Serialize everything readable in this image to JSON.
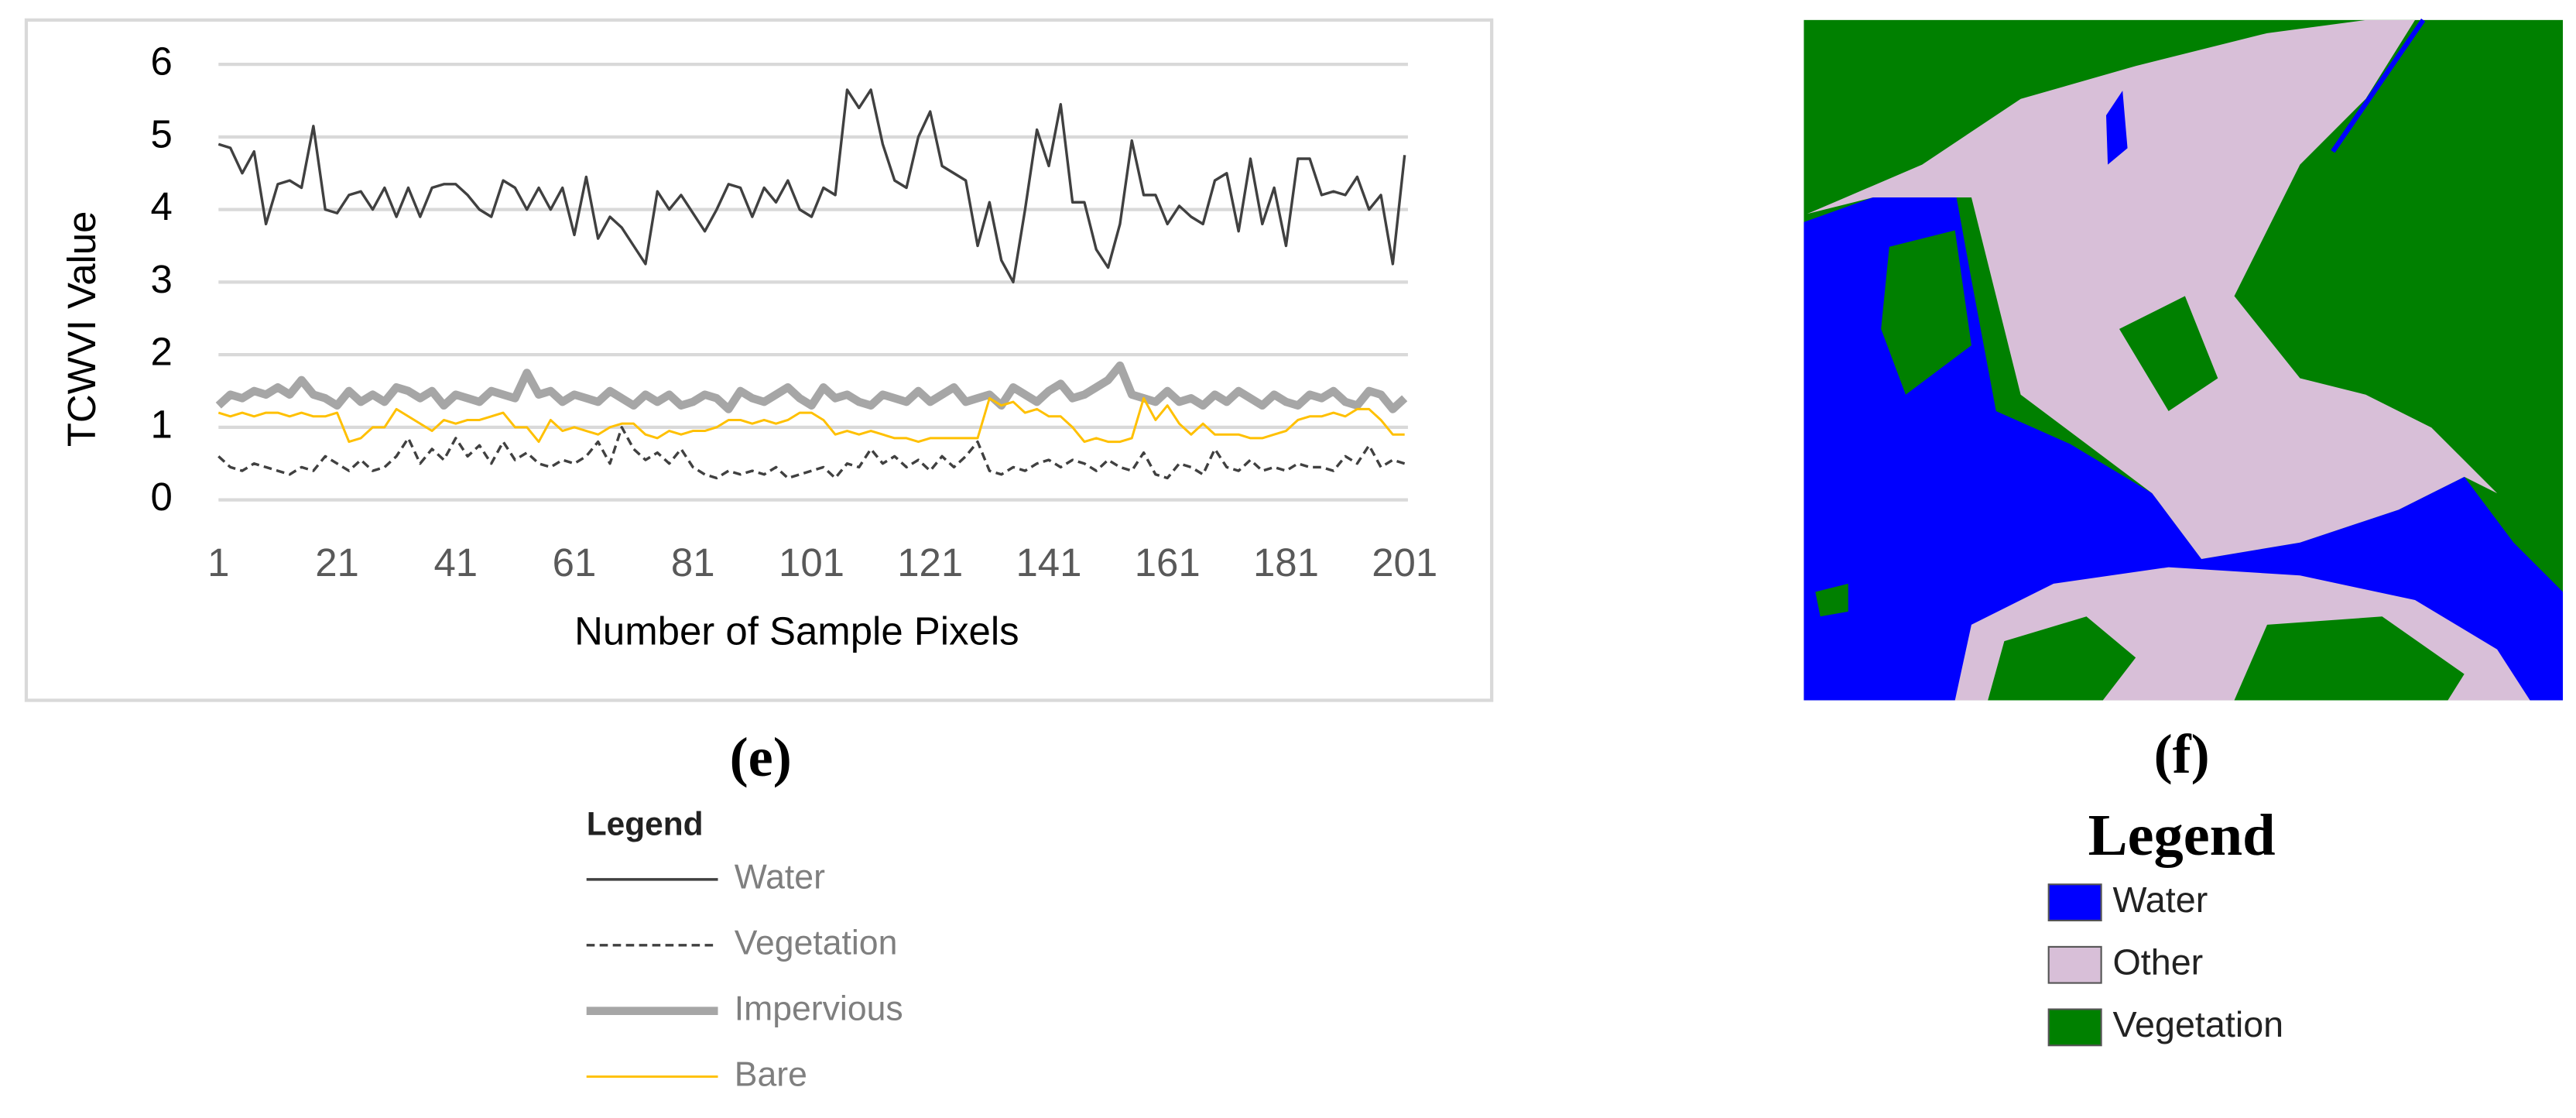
{
  "chart_data": {
    "type": "line",
    "y_label": "TCWVI Value",
    "x_label": "Number of Sample Pixels",
    "legend_title": "Legend",
    "xlim": [
      1,
      201
    ],
    "xticks": [
      1,
      21,
      41,
      61,
      81,
      101,
      121,
      141,
      161,
      181,
      201
    ],
    "ylim": [
      0,
      6
    ],
    "yticks": [
      0,
      1,
      2,
      3,
      4,
      5,
      6
    ],
    "grid": true,
    "x": [
      1,
      3,
      5,
      7,
      9,
      11,
      13,
      15,
      17,
      19,
      21,
      23,
      25,
      27,
      29,
      31,
      33,
      35,
      37,
      39,
      41,
      43,
      45,
      47,
      49,
      51,
      53,
      55,
      57,
      59,
      61,
      63,
      65,
      67,
      69,
      71,
      73,
      75,
      77,
      79,
      81,
      83,
      85,
      87,
      89,
      91,
      93,
      95,
      97,
      99,
      101,
      103,
      105,
      107,
      109,
      111,
      113,
      115,
      117,
      119,
      121,
      123,
      125,
      127,
      129,
      131,
      133,
      135,
      137,
      139,
      141,
      143,
      145,
      147,
      149,
      151,
      153,
      155,
      157,
      159,
      161,
      163,
      165,
      167,
      169,
      171,
      173,
      175,
      177,
      179,
      181,
      183,
      185,
      187,
      189,
      191,
      193,
      195,
      197,
      199,
      201
    ],
    "series": [
      {
        "name": "Water",
        "color": "#404040",
        "style": "solid",
        "values": [
          4.9,
          4.85,
          4.5,
          4.8,
          3.8,
          4.35,
          4.4,
          4.3,
          5.15,
          4.0,
          3.95,
          4.2,
          4.25,
          4.0,
          4.3,
          3.9,
          4.3,
          3.9,
          4.3,
          4.35,
          4.35,
          4.2,
          4.0,
          3.9,
          4.4,
          4.3,
          4.0,
          4.3,
          4.0,
          4.3,
          3.65,
          4.45,
          3.6,
          3.9,
          3.75,
          3.5,
          3.25,
          4.25,
          4.0,
          4.2,
          3.95,
          3.7,
          4.0,
          4.35,
          4.3,
          3.9,
          4.3,
          4.1,
          4.4,
          4.0,
          3.9,
          4.3,
          4.2,
          5.65,
          5.4,
          5.65,
          4.9,
          4.4,
          4.3,
          5.0,
          5.35,
          4.6,
          4.5,
          4.4,
          3.5,
          4.1,
          3.3,
          3.0,
          4.0,
          5.1,
          4.6,
          5.45,
          4.1,
          4.1,
          3.45,
          3.2,
          3.8,
          4.95,
          4.2,
          4.2,
          3.8,
          4.05,
          3.9,
          3.8,
          4.4,
          4.5,
          3.7,
          4.7,
          3.8,
          4.3,
          3.5,
          4.7,
          4.7,
          4.2,
          4.25,
          4.2,
          4.45,
          4.0,
          4.2,
          3.25,
          4.75
        ]
      },
      {
        "name": "Vegetation",
        "color": "#404040",
        "style": "dashed",
        "values": [
          0.6,
          0.45,
          0.4,
          0.5,
          0.45,
          0.4,
          0.35,
          0.45,
          0.4,
          0.6,
          0.5,
          0.4,
          0.55,
          0.4,
          0.45,
          0.6,
          0.85,
          0.5,
          0.7,
          0.55,
          0.85,
          0.6,
          0.75,
          0.5,
          0.8,
          0.55,
          0.65,
          0.5,
          0.45,
          0.55,
          0.5,
          0.6,
          0.8,
          0.5,
          1.0,
          0.7,
          0.55,
          0.65,
          0.5,
          0.7,
          0.45,
          0.35,
          0.3,
          0.4,
          0.35,
          0.4,
          0.35,
          0.45,
          0.3,
          0.35,
          0.4,
          0.45,
          0.3,
          0.5,
          0.45,
          0.7,
          0.5,
          0.6,
          0.45,
          0.55,
          0.4,
          0.6,
          0.45,
          0.6,
          0.8,
          0.4,
          0.35,
          0.45,
          0.4,
          0.5,
          0.55,
          0.45,
          0.55,
          0.5,
          0.4,
          0.55,
          0.45,
          0.4,
          0.65,
          0.35,
          0.3,
          0.5,
          0.45,
          0.35,
          0.7,
          0.45,
          0.4,
          0.55,
          0.4,
          0.45,
          0.4,
          0.5,
          0.45,
          0.45,
          0.4,
          0.6,
          0.5,
          0.75,
          0.45,
          0.55,
          0.5
        ]
      },
      {
        "name": "Impervious",
        "color": "#a6a6a6",
        "style": "thick",
        "values": [
          1.3,
          1.45,
          1.4,
          1.5,
          1.45,
          1.55,
          1.45,
          1.65,
          1.45,
          1.4,
          1.3,
          1.5,
          1.35,
          1.45,
          1.35,
          1.55,
          1.5,
          1.4,
          1.5,
          1.3,
          1.45,
          1.4,
          1.35,
          1.5,
          1.45,
          1.4,
          1.75,
          1.45,
          1.5,
          1.35,
          1.45,
          1.4,
          1.35,
          1.5,
          1.4,
          1.3,
          1.45,
          1.35,
          1.45,
          1.3,
          1.35,
          1.45,
          1.4,
          1.25,
          1.5,
          1.4,
          1.35,
          1.45,
          1.55,
          1.4,
          1.3,
          1.55,
          1.4,
          1.45,
          1.35,
          1.3,
          1.45,
          1.4,
          1.35,
          1.5,
          1.35,
          1.45,
          1.55,
          1.35,
          1.4,
          1.45,
          1.3,
          1.55,
          1.45,
          1.35,
          1.5,
          1.6,
          1.4,
          1.45,
          1.55,
          1.65,
          1.85,
          1.45,
          1.4,
          1.35,
          1.5,
          1.35,
          1.4,
          1.3,
          1.45,
          1.35,
          1.5,
          1.4,
          1.3,
          1.45,
          1.35,
          1.3,
          1.45,
          1.4,
          1.5,
          1.35,
          1.3,
          1.5,
          1.45,
          1.25,
          1.4
        ]
      },
      {
        "name": "Bare",
        "color": "#ffc000",
        "style": "thin",
        "values": [
          1.2,
          1.15,
          1.2,
          1.15,
          1.2,
          1.2,
          1.15,
          1.2,
          1.15,
          1.15,
          1.2,
          0.8,
          0.85,
          1.0,
          1.0,
          1.25,
          1.15,
          1.05,
          0.95,
          1.1,
          1.05,
          1.1,
          1.1,
          1.15,
          1.2,
          1.0,
          1.0,
          0.8,
          1.1,
          0.95,
          1.0,
          0.95,
          0.9,
          1.0,
          1.05,
          1.05,
          0.9,
          0.85,
          0.95,
          0.9,
          0.95,
          0.95,
          1.0,
          1.1,
          1.1,
          1.05,
          1.1,
          1.05,
          1.1,
          1.2,
          1.2,
          1.1,
          0.9,
          0.95,
          0.9,
          0.95,
          0.9,
          0.85,
          0.85,
          0.8,
          0.85,
          0.85,
          0.85,
          0.85,
          0.85,
          1.4,
          1.3,
          1.35,
          1.2,
          1.25,
          1.15,
          1.15,
          1.0,
          0.8,
          0.85,
          0.8,
          0.8,
          0.85,
          1.4,
          1.1,
          1.3,
          1.05,
          0.9,
          1.05,
          0.9,
          0.9,
          0.9,
          0.85,
          0.85,
          0.9,
          0.95,
          1.1,
          1.15,
          1.15,
          1.2,
          1.15,
          1.25,
          1.25,
          1.1,
          0.9,
          0.9
        ]
      }
    ]
  },
  "captions": [
    "(e)",
    "(f)"
  ],
  "map_legend": {
    "title": "Legend",
    "items": [
      {
        "label": "Water",
        "color": "#0000ff"
      },
      {
        "label": "Other",
        "color": "#d8bfd8"
      },
      {
        "label": "Vegetation",
        "color": "#008000"
      }
    ]
  }
}
